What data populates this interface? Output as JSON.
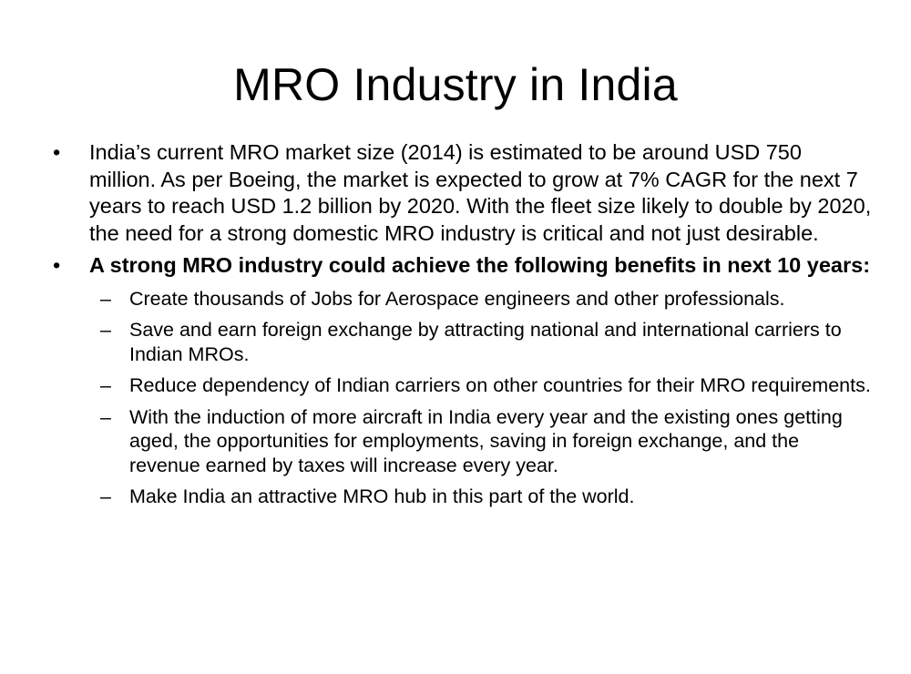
{
  "slide": {
    "title": "MRO Industry in India",
    "bullet_marker": "•",
    "sub_marker": "–",
    "bullets": [
      {
        "text": "India’s current MRO market size (2014) is estimated to be around USD 750 million. As per Boeing, the market is expected to grow at 7% CAGR for the next 7 years to reach USD 1.2 billion by 2020. With the fleet size likely to double by 2020, the need for a strong domestic MRO industry is critical and not just desirable."
      },
      {
        "text": "A strong MRO industry could achieve the following benefits in next 10 years:",
        "sub_items": [
          "Create thousands of Jobs for Aerospace engineers and other professionals.",
          "Save and earn foreign exchange by attracting national and international carriers to Indian MROs.",
          "Reduce dependency of Indian carriers on other countries for their MRO requirements.",
          "With the induction of more aircraft in India every year and the existing ones getting aged, the opportunities for employments, saving in foreign exchange, and the revenue earned by taxes will increase every year.",
          "Make India an attractive MRO hub in this part of the world."
        ]
      }
    ]
  }
}
